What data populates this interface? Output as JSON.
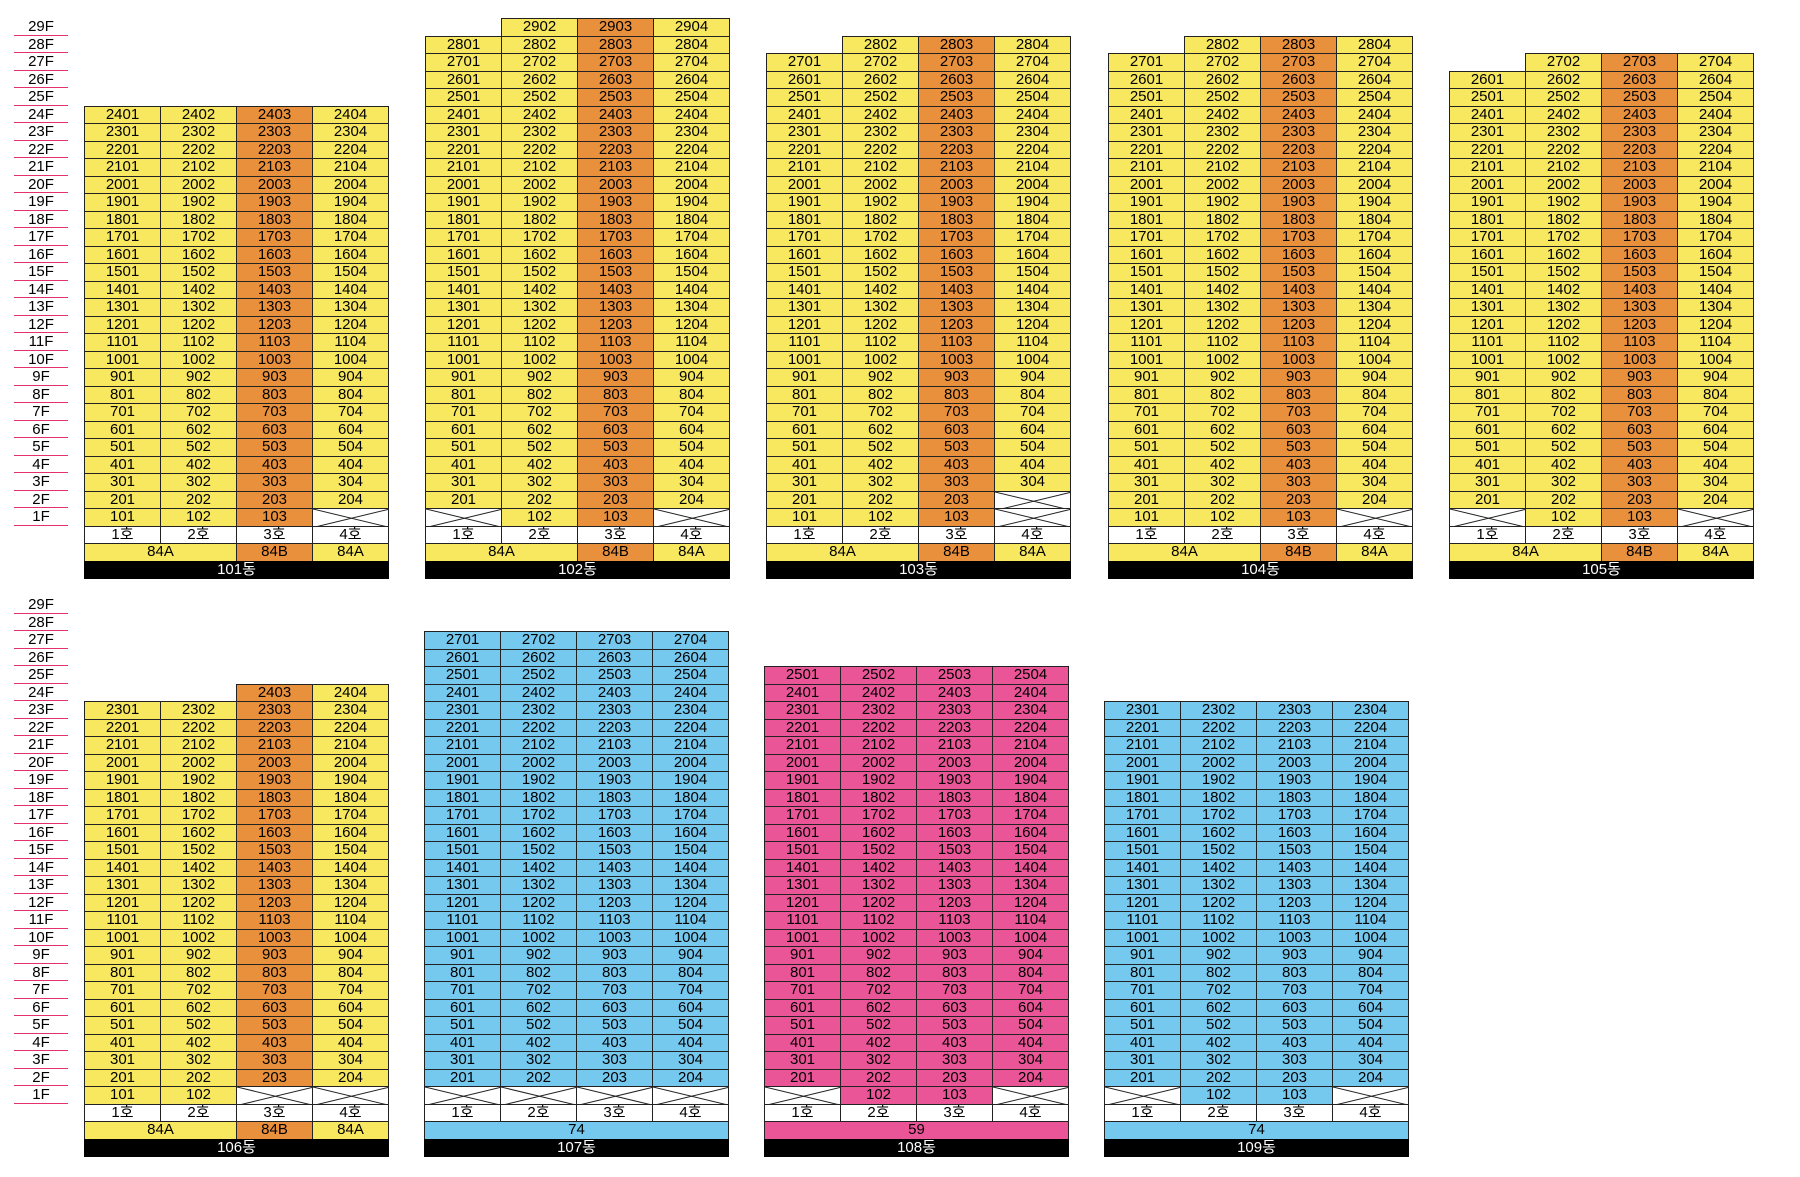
{
  "colors": {
    "type_84A": "#f7e860",
    "type_84B": "#e9903c",
    "type_74": "#75c8ee",
    "type_59": "#ea5597",
    "floor_line": "#e3306f",
    "name_bar_bg": "#000000",
    "name_bar_fg": "#ffffff"
  },
  "floor_labels": [
    "29F",
    "28F",
    "27F",
    "26F",
    "25F",
    "24F",
    "23F",
    "22F",
    "21F",
    "20F",
    "19F",
    "18F",
    "17F",
    "16F",
    "15F",
    "14F",
    "13F",
    "12F",
    "11F",
    "10F",
    "9F",
    "8F",
    "7F",
    "6F",
    "5F",
    "4F",
    "3F",
    "2F",
    "1F"
  ],
  "buildings": [
    {
      "name": "101동",
      "row": 0,
      "ho_labels": [
        "1호",
        "2호",
        "3호",
        "4호"
      ],
      "types": [
        {
          "label": "84A",
          "color": "type_84A",
          "span": 2
        },
        {
          "label": "84B",
          "color": "type_84B",
          "span": 1
        },
        {
          "label": "84A",
          "color": "type_84A",
          "span": 1
        }
      ],
      "columns": [
        {
          "top": 24,
          "empty": [],
          "color": "type_84A"
        },
        {
          "top": 24,
          "empty": [],
          "color": "type_84A"
        },
        {
          "top": 24,
          "empty": [],
          "color": "type_84B"
        },
        {
          "top": 24,
          "empty": [
            1
          ],
          "color": "type_84A"
        }
      ]
    },
    {
      "name": "102동",
      "row": 0,
      "ho_labels": [
        "1호",
        "2호",
        "3호",
        "4호"
      ],
      "types": [
        {
          "label": "84A",
          "color": "type_84A",
          "span": 2
        },
        {
          "label": "84B",
          "color": "type_84B",
          "span": 1
        },
        {
          "label": "84A",
          "color": "type_84A",
          "span": 1
        }
      ],
      "columns": [
        {
          "top": 28,
          "empty": [
            1
          ],
          "color": "type_84A"
        },
        {
          "top": 29,
          "empty": [],
          "color": "type_84A"
        },
        {
          "top": 29,
          "empty": [],
          "color": "type_84B"
        },
        {
          "top": 29,
          "empty": [
            1
          ],
          "color": "type_84A"
        }
      ]
    },
    {
      "name": "103동",
      "row": 0,
      "ho_labels": [
        "1호",
        "2호",
        "3호",
        "4호"
      ],
      "types": [
        {
          "label": "84A",
          "color": "type_84A",
          "span": 2
        },
        {
          "label": "84B",
          "color": "type_84B",
          "span": 1
        },
        {
          "label": "84A",
          "color": "type_84A",
          "span": 1
        }
      ],
      "columns": [
        {
          "top": 27,
          "empty": [],
          "color": "type_84A"
        },
        {
          "top": 28,
          "empty": [],
          "color": "type_84A"
        },
        {
          "top": 28,
          "empty": [],
          "color": "type_84B"
        },
        {
          "top": 28,
          "empty": [
            1,
            2
          ],
          "color": "type_84A"
        }
      ]
    },
    {
      "name": "104동",
      "row": 0,
      "ho_labels": [
        "1호",
        "2호",
        "3호",
        "4호"
      ],
      "types": [
        {
          "label": "84A",
          "color": "type_84A",
          "span": 2
        },
        {
          "label": "84B",
          "color": "type_84B",
          "span": 1
        },
        {
          "label": "84A",
          "color": "type_84A",
          "span": 1
        }
      ],
      "columns": [
        {
          "top": 27,
          "empty": [],
          "color": "type_84A"
        },
        {
          "top": 28,
          "empty": [],
          "color": "type_84A"
        },
        {
          "top": 28,
          "empty": [],
          "color": "type_84B"
        },
        {
          "top": 28,
          "empty": [
            1
          ],
          "color": "type_84A"
        }
      ]
    },
    {
      "name": "105동",
      "row": 0,
      "ho_labels": [
        "1호",
        "2호",
        "3호",
        "4호"
      ],
      "types": [
        {
          "label": "84A",
          "color": "type_84A",
          "span": 2
        },
        {
          "label": "84B",
          "color": "type_84B",
          "span": 1
        },
        {
          "label": "84A",
          "color": "type_84A",
          "span": 1
        }
      ],
      "columns": [
        {
          "top": 26,
          "empty": [
            1
          ],
          "color": "type_84A"
        },
        {
          "top": 27,
          "empty": [],
          "color": "type_84A"
        },
        {
          "top": 27,
          "empty": [],
          "color": "type_84B"
        },
        {
          "top": 27,
          "empty": [
            1
          ],
          "color": "type_84A"
        }
      ]
    },
    {
      "name": "106동",
      "row": 1,
      "ho_labels": [
        "1호",
        "2호",
        "3호",
        "4호"
      ],
      "types": [
        {
          "label": "84A",
          "color": "type_84A",
          "span": 2
        },
        {
          "label": "84B",
          "color": "type_84B",
          "span": 1
        },
        {
          "label": "84A",
          "color": "type_84A",
          "span": 1
        }
      ],
      "columns": [
        {
          "top": 23,
          "empty": [],
          "color": "type_84A"
        },
        {
          "top": 23,
          "empty": [],
          "color": "type_84A"
        },
        {
          "top": 24,
          "empty": [
            1
          ],
          "color": "type_84B"
        },
        {
          "top": 24,
          "empty": [
            1
          ],
          "color": "type_84A"
        }
      ]
    },
    {
      "name": "107동",
      "row": 1,
      "ho_labels": [
        "1호",
        "2호",
        "3호",
        "4호"
      ],
      "types": [
        {
          "label": "74",
          "color": "type_74",
          "span": 4
        }
      ],
      "columns": [
        {
          "top": 27,
          "empty": [
            1
          ],
          "color": "type_74"
        },
        {
          "top": 27,
          "empty": [
            1
          ],
          "color": "type_74"
        },
        {
          "top": 27,
          "empty": [
            1
          ],
          "color": "type_74"
        },
        {
          "top": 27,
          "empty": [
            1
          ],
          "color": "type_74"
        }
      ]
    },
    {
      "name": "108동",
      "row": 1,
      "ho_labels": [
        "1호",
        "2호",
        "3호",
        "4호"
      ],
      "types": [
        {
          "label": "59",
          "color": "type_59",
          "span": 4
        }
      ],
      "columns": [
        {
          "top": 25,
          "empty": [
            1
          ],
          "color": "type_59"
        },
        {
          "top": 25,
          "empty": [],
          "color": "type_59"
        },
        {
          "top": 25,
          "empty": [],
          "color": "type_59"
        },
        {
          "top": 25,
          "empty": [
            1
          ],
          "color": "type_59"
        }
      ]
    },
    {
      "name": "109동",
      "row": 1,
      "ho_labels": [
        "1호",
        "2호",
        "3호",
        "4호"
      ],
      "types": [
        {
          "label": "74",
          "color": "type_74",
          "span": 4
        }
      ],
      "columns": [
        {
          "top": 23,
          "empty": [
            1
          ],
          "color": "type_74"
        },
        {
          "top": 23,
          "empty": [],
          "color": "type_74"
        },
        {
          "top": 23,
          "empty": [],
          "color": "type_74"
        },
        {
          "top": 23,
          "empty": [
            1
          ],
          "color": "type_74"
        }
      ]
    }
  ]
}
